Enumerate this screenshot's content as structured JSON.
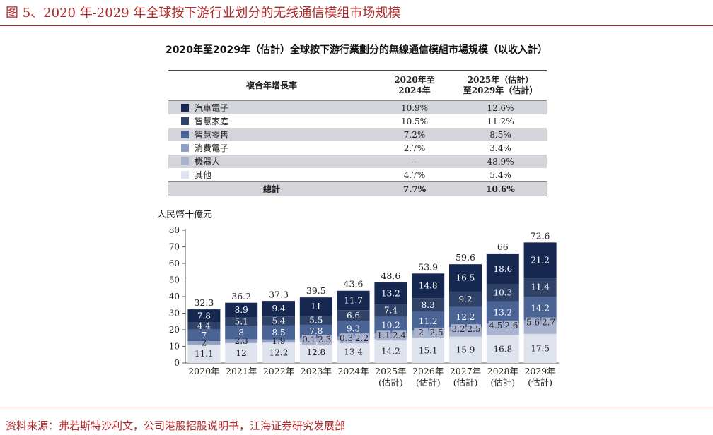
{
  "header": {
    "figure_title": "图 5、2020 年-2029 年全球按下游行业划分的无线通信模组市场规模",
    "source": "资料来源：弗若斯特沙利文，公司港股招股说明书，江海证券研究发展部"
  },
  "growth_table": {
    "header": [
      "複合年增長率",
      "2020年至\n2024年",
      "2025年（估計）\n至2029年（估計）"
    ],
    "rows": [
      {
        "category": "汽車電子",
        "cagr_2020_2024": "10.9%",
        "cagr_2025_2029": "12.6%",
        "swatch": "#16284f"
      },
      {
        "category": "智慧家庭",
        "cagr_2020_2024": "10.5%",
        "cagr_2025_2029": "11.2%",
        "swatch": "#2f4368"
      },
      {
        "category": "智慧零售",
        "cagr_2020_2024": "7.2%",
        "cagr_2025_2029": "8.5%",
        "swatch": "#4b6496"
      },
      {
        "category": "消費電子",
        "cagr_2020_2024": "2.7%",
        "cagr_2025_2029": "3.4%",
        "swatch": "#8fa0c4"
      },
      {
        "category": "機器人",
        "cagr_2020_2024": "–",
        "cagr_2025_2029": "48.9%",
        "swatch": "#a9b3cf"
      },
      {
        "category": "其他",
        "cagr_2020_2024": "4.7%",
        "cagr_2025_2029": "5.4%",
        "swatch": "#dfe3ee"
      }
    ],
    "total": {
      "label": "總計",
      "cagr_2020_2024": "7.7%",
      "cagr_2025_2029": "10.6%"
    }
  },
  "chart_data": {
    "type": "bar",
    "stacked": true,
    "title": "2020年至2029年（估計）全球按下游行業劃分的無線通信模組市場規模（以收入計）",
    "ylabel": "人民幣十億元",
    "ylim": [
      0,
      80
    ],
    "yticks": [
      0,
      10,
      20,
      30,
      40,
      50,
      60,
      70,
      80
    ],
    "categories": [
      "2020年",
      "2021年",
      "2022年",
      "2023年",
      "2024年",
      "2025年\n(估計)",
      "2026年\n(估計)",
      "2027年\n(估計)",
      "2028年\n(估計)",
      "2029年\n(估計)"
    ],
    "totals": [
      32.3,
      36.2,
      37.3,
      39.5,
      43.6,
      48.6,
      53.9,
      59.6,
      66.0,
      72.6
    ],
    "series": [
      {
        "name": "其他",
        "color": "#dfe3ee",
        "values": [
          11.1,
          12.0,
          12.2,
          12.8,
          13.4,
          14.2,
          15.1,
          15.9,
          16.8,
          17.5
        ]
      },
      {
        "name": "機器人",
        "color": "#a9b3cf",
        "values": [
          0,
          0,
          0,
          0.1,
          0.3,
          1.1,
          2.0,
          3.2,
          4.5,
          5.6
        ]
      },
      {
        "name": "消費電子",
        "color": "#8fa0c4",
        "values": [
          2.0,
          2.3,
          1.9,
          2.3,
          2.2,
          2.4,
          2.5,
          2.5,
          2.6,
          2.7
        ]
      },
      {
        "name": "智慧零售",
        "color": "#4b6496",
        "values": [
          7.0,
          8.0,
          8.5,
          7.8,
          9.3,
          10.2,
          11.2,
          12.2,
          13.2,
          14.2
        ]
      },
      {
        "name": "智慧家庭",
        "color": "#2f4368",
        "values": [
          4.4,
          5.1,
          5.4,
          5.5,
          6.6,
          7.4,
          8.3,
          9.2,
          10.3,
          11.4
        ]
      },
      {
        "name": "汽車電子",
        "color": "#16284f",
        "values": [
          7.8,
          8.9,
          9.4,
          11.0,
          11.7,
          13.2,
          14.8,
          16.5,
          18.6,
          21.2
        ]
      }
    ]
  }
}
